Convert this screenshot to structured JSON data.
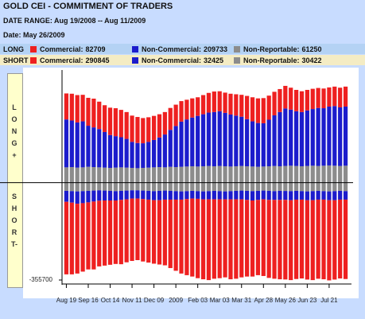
{
  "chart_data": {
    "type": "bar",
    "stacked": true,
    "title": "GOLD CEI - COMMITMENT OF TRADERS",
    "date_range": "DATE RANGE: Aug 19/2008 -- Aug 11/2009",
    "date": "Date: May 26/2009",
    "side_labels": [
      "LONG+",
      "SHORT-"
    ],
    "legend": [
      {
        "label": "LONG",
        "entries": [
          {
            "name": "Commercial:",
            "value": 82709
          },
          {
            "name": "Non-Commercial:",
            "value": 209733
          },
          {
            "name": "Non-Reportable:",
            "value": 61250
          }
        ]
      },
      {
        "label": "SHORT",
        "entries": [
          {
            "name": "Commercial:",
            "value": 290845
          },
          {
            "name": "Non-Commercial:",
            "value": 32425
          },
          {
            "name": "Non-Reportable:",
            "value": 30422
          }
        ]
      }
    ],
    "categories": [
      "Aug 19",
      null,
      null,
      null,
      "Sep 16",
      null,
      null,
      null,
      "Oct 14",
      null,
      null,
      null,
      "Nov 11",
      null,
      null,
      null,
      "Dec 09",
      null,
      null,
      null,
      "2009",
      null,
      null,
      null,
      "Feb 03",
      null,
      null,
      null,
      "Mar 03",
      null,
      null,
      null,
      "Mar 31",
      null,
      null,
      null,
      "Apr 28",
      null,
      null,
      null,
      "May 26",
      null,
      null,
      null,
      "Jun 23",
      null,
      null,
      null,
      "Jul 21",
      null,
      null,
      null
    ],
    "series": [
      {
        "color": "#ee2020",
        "values": [
          95000,
          98000,
          100000,
          97000,
          102000,
          105000,
          100000,
          98000,
          100000,
          102000,
          100000,
          98000,
          96000,
          95000,
          92000,
          90000,
          88000,
          85000,
          82000,
          80000,
          78000,
          75000,
          72000,
          70000,
          68000,
          70000,
          72000,
          75000,
          73000,
          74000,
          76000,
          78000,
          80000,
          85000,
          88000,
          90000,
          92000,
          88000,
          86000,
          84000,
          82709,
          80000,
          78000,
          76000,
          75000,
          74000,
          73000,
          72000,
          70000,
          71000,
          72000,
          73000
        ]
      },
      {
        "color": "#1c1ccc",
        "values": [
          175000,
          170000,
          165000,
          168000,
          150000,
          145000,
          140000,
          130000,
          120000,
          115000,
          110000,
          105000,
          95000,
          92000,
          90000,
          94000,
          100000,
          108000,
          120000,
          135000,
          150000,
          165000,
          172000,
          178000,
          185000,
          190000,
          195000,
          198000,
          200000,
          195000,
          190000,
          185000,
          180000,
          172000,
          165000,
          160000,
          158000,
          170000,
          185000,
          198000,
          209733,
          205000,
          200000,
          198000,
          203000,
          207000,
          212000,
          210000,
          215000,
          218000,
          214000,
          216000
        ]
      },
      {
        "color": "#8c8c8c",
        "values": [
          56000,
          57000,
          55000,
          56000,
          58000,
          57000,
          56000,
          55000,
          54000,
          55000,
          56000,
          55000,
          54000,
          53000,
          54000,
          55000,
          56000,
          57000,
          56000,
          58000,
          57000,
          58000,
          59000,
          60000,
          59000,
          60000,
          61000,
          60000,
          61000,
          60000,
          59000,
          60000,
          61000,
          60000,
          59000,
          58000,
          59000,
          60000,
          61000,
          60000,
          61250,
          62000,
          61000,
          60000,
          61000,
          62000,
          61000,
          62000,
          63000,
          62000,
          61000,
          62000
        ]
      },
      {
        "color": "#ee2020",
        "values": [
          -265000,
          -262000,
          -255000,
          -250000,
          -245000,
          -248000,
          -240000,
          -238000,
          -235000,
          -232000,
          -235000,
          -230000,
          -228000,
          -225000,
          -228000,
          -230000,
          -232000,
          -235000,
          -240000,
          -250000,
          -260000,
          -270000,
          -278000,
          -285000,
          -290000,
          -292000,
          -295000,
          -290000,
          -288000,
          -285000,
          -292000,
          -290000,
          -285000,
          -280000,
          -278000,
          -275000,
          -280000,
          -285000,
          -288000,
          -290000,
          -290845,
          -292000,
          -290000,
          -288000,
          -290000,
          -292000,
          -289000,
          -291000,
          -293000,
          -290000,
          -288000,
          -290000
        ]
      },
      {
        "color": "#1c1ccc",
        "values": [
          -40000,
          -42000,
          -45000,
          -44000,
          -42000,
          -40000,
          -38000,
          -36000,
          -35000,
          -34000,
          -33000,
          -32000,
          -30000,
          -30000,
          -31000,
          -32000,
          -33000,
          -34000,
          -33000,
          -32000,
          -31000,
          -30000,
          -29000,
          -28000,
          -28000,
          -29000,
          -30000,
          -31000,
          -30000,
          -29000,
          -30000,
          -31000,
          -32000,
          -33000,
          -34000,
          -33000,
          -32000,
          -33000,
          -32000,
          -33000,
          -32425,
          -33000,
          -32000,
          -31000,
          -32000,
          -33000,
          -32000,
          -31000,
          -32000,
          -33000,
          -32000,
          -31000
        ]
      },
      {
        "color": "#8c8c8c",
        "values": [
          -30000,
          -31000,
          -32000,
          -31000,
          -30000,
          -29000,
          -28000,
          -29000,
          -30000,
          -31000,
          -30000,
          -29000,
          -28000,
          -28000,
          -29000,
          -30000,
          -31000,
          -30000,
          -29000,
          -30000,
          -31000,
          -32000,
          -31000,
          -30000,
          -31000,
          -32000,
          -31000,
          -30000,
          -31000,
          -32000,
          -31000,
          -30000,
          -29000,
          -30000,
          -31000,
          -30000,
          -29000,
          -30000,
          -31000,
          -30000,
          -30422,
          -31000,
          -30000,
          -31000,
          -32000,
          -31000,
          -30000,
          -31000,
          -32000,
          -31000,
          -30000,
          -31000
        ]
      }
    ],
    "ylim": [
      -355700,
      400000
    ],
    "yticks": [
      -355700
    ]
  }
}
